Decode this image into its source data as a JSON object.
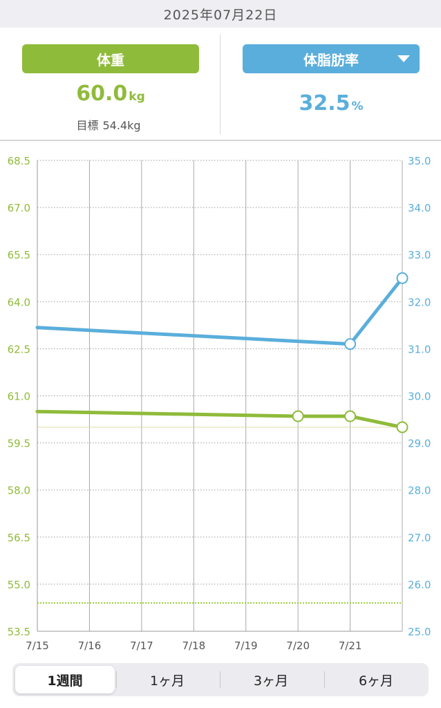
{
  "header": {
    "date": "2025年07月22日"
  },
  "metrics": {
    "weight": {
      "label": "体重",
      "value": "60.0",
      "unit": "kg",
      "target_label": "目標",
      "target_value": "54.4kg"
    },
    "body_fat": {
      "label": "体脂肪率",
      "value": "32.5",
      "unit": "%"
    }
  },
  "periods": [
    "1週間",
    "1ヶ月",
    "3ヶ月",
    "6ヶ月"
  ],
  "active_period": "1週間",
  "colors": {
    "weight": "#8fbb3a",
    "body_fat": "#5aaedb",
    "target": "#9acd32",
    "grid": "#9a9a9a"
  },
  "chart_data": {
    "type": "line",
    "x_categories": [
      "7/15",
      "7/16",
      "7/17",
      "7/18",
      "7/19",
      "7/20",
      "7/21",
      "7/22"
    ],
    "x_tick_labels": [
      "7/15",
      "7/16",
      "7/17",
      "7/18",
      "7/19",
      "7/20",
      "7/21"
    ],
    "y_left": {
      "ylim": [
        53.5,
        68.5
      ],
      "ticks": [
        "68.5",
        "67.0",
        "65.5",
        "64.0",
        "62.5",
        "61.0",
        "59.5",
        "58.0",
        "56.5",
        "55.0",
        "53.5"
      ]
    },
    "y_right": {
      "ylim": [
        25.0,
        35.0
      ],
      "ticks": [
        "35.0",
        "34.0",
        "33.0",
        "32.0",
        "31.0",
        "30.0",
        "29.0",
        "28.0",
        "27.0",
        "26.0",
        "25.0"
      ]
    },
    "series": [
      {
        "axis": "left",
        "points": [
          {
            "x": "7/15",
            "y": 60.5
          },
          {
            "x": "7/20",
            "y": 60.35
          },
          {
            "x": "7/21",
            "y": 60.35
          },
          {
            "x": "7/22",
            "y": 60.0
          }
        ],
        "markers": [
          "7/20",
          "7/21",
          "7/22"
        ]
      },
      {
        "axis": "right",
        "points": [
          {
            "x": "7/15",
            "y": 31.45
          },
          {
            "x": "7/21",
            "y": 31.1
          },
          {
            "x": "7/22",
            "y": 32.5
          }
        ],
        "markers": [
          "7/21",
          "7/22"
        ]
      }
    ],
    "target_line": {
      "axis": "left",
      "y": 54.4
    },
    "current_weight_line": {
      "axis": "left",
      "y": 60.0
    },
    "grid": true
  }
}
